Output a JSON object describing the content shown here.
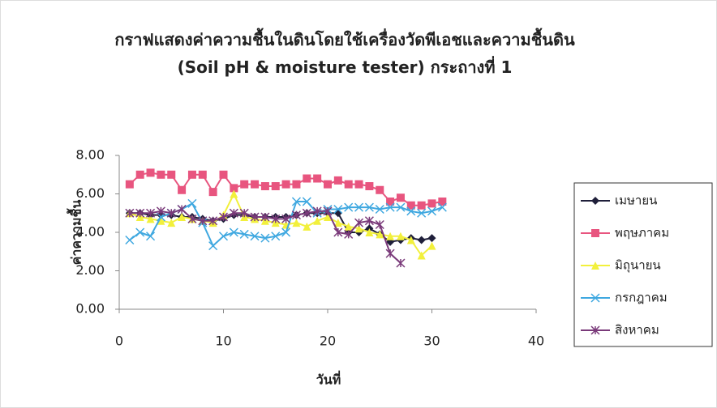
{
  "chart_data": {
    "type": "line",
    "title": "กราฟแสดงค่าความชื้นในดินโดยใช้เครื่องวัดพีเอชและความชื้นดิน (Soil pH & moisture tester) กระถางที่ 1",
    "x_label": "วันที่",
    "y_label": "ค่าความชื้น",
    "x": [
      1,
      2,
      3,
      4,
      5,
      6,
      7,
      8,
      9,
      10,
      11,
      12,
      13,
      14,
      15,
      16,
      17,
      18,
      19,
      20,
      21,
      22,
      23,
      24,
      25,
      26,
      27,
      28,
      29,
      30,
      31
    ],
    "xlim": [
      0,
      40
    ],
    "xticks": [
      0,
      10,
      20,
      30,
      40
    ],
    "ylim": [
      0,
      8
    ],
    "yticks": [
      {
        "value": 0,
        "label": "0.00"
      },
      {
        "value": 2,
        "label": "2.00"
      },
      {
        "value": 4,
        "label": "4.00"
      },
      {
        "value": 6,
        "label": "6.00"
      },
      {
        "value": 8,
        "label": "8.00"
      }
    ],
    "legend": "right",
    "series": [
      {
        "name": "เมษายน",
        "color": "#1f1f3a",
        "marker": "diamond",
        "values": [
          5.0,
          5.0,
          4.9,
          4.9,
          4.9,
          4.8,
          4.8,
          4.7,
          4.6,
          4.7,
          4.9,
          4.9,
          4.8,
          4.8,
          4.8,
          4.8,
          4.9,
          5.0,
          5.0,
          5.0,
          5.0,
          4.0,
          4.0,
          4.2,
          3.9,
          3.5,
          3.6,
          3.7,
          3.6,
          3.7,
          null
        ]
      },
      {
        "name": "พฤษภาคม",
        "color": "#e8557f",
        "marker": "square",
        "values": [
          6.5,
          7.0,
          7.1,
          7.0,
          7.0,
          6.2,
          7.0,
          7.0,
          6.1,
          7.0,
          6.3,
          6.5,
          6.5,
          6.4,
          6.4,
          6.5,
          6.5,
          6.8,
          6.8,
          6.5,
          6.7,
          6.5,
          6.5,
          6.4,
          6.2,
          5.6,
          5.8,
          5.4,
          5.4,
          5.5,
          5.6
        ]
      },
      {
        "name": "มิถุนายน",
        "color": "#f2f03c",
        "marker": "triangle",
        "values": [
          5.0,
          4.8,
          4.7,
          4.6,
          4.5,
          4.8,
          4.7,
          4.6,
          4.5,
          4.9,
          6.0,
          4.8,
          4.7,
          4.6,
          4.5,
          4.4,
          4.5,
          4.3,
          4.6,
          4.8,
          4.5,
          4.3,
          4.2,
          4.0,
          3.9,
          3.8,
          3.8,
          3.6,
          2.8,
          3.3,
          null
        ]
      },
      {
        "name": "กรกฎาคม",
        "color": "#3fa8e0",
        "marker": "x",
        "values": [
          3.6,
          4.0,
          3.8,
          4.8,
          5.0,
          5.2,
          5.5,
          4.5,
          3.3,
          3.8,
          4.0,
          3.9,
          3.8,
          3.7,
          3.8,
          4.0,
          5.6,
          5.6,
          5.0,
          5.2,
          5.2,
          5.3,
          5.3,
          5.3,
          5.2,
          5.3,
          5.3,
          5.1,
          5.0,
          5.1,
          5.3
        ]
      },
      {
        "name": "สิงหาคม",
        "color": "#7a3a7a",
        "marker": "star",
        "values": [
          5.0,
          5.0,
          5.0,
          5.1,
          5.0,
          5.2,
          4.7,
          4.6,
          4.6,
          4.8,
          5.0,
          5.0,
          4.8,
          4.8,
          4.7,
          4.7,
          4.9,
          5.0,
          5.1,
          5.1,
          4.0,
          3.9,
          4.5,
          4.6,
          4.4,
          2.9,
          2.4,
          null,
          null,
          null,
          null
        ]
      }
    ]
  }
}
